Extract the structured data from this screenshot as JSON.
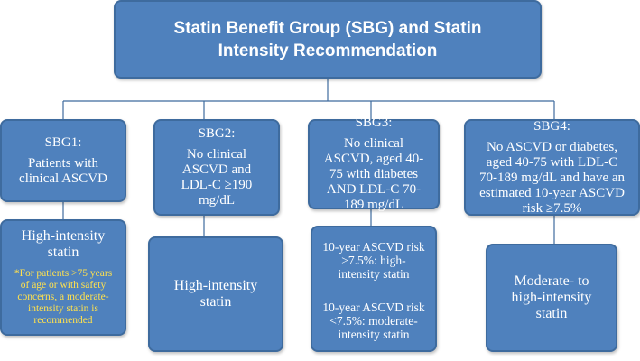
{
  "title": "Statin Benefit Group (SBG) and Statin Intensity Recommendation",
  "groups": [
    {
      "label": "SBG1:",
      "description": "Patients with clinical ASCVD",
      "recommendation": "High-intensity statin",
      "note": "*For patients >75 years of age or with safety concerns, a moderate-intensity statin is recommended"
    },
    {
      "label": "SBG2:",
      "description": "No clinical ASCVD and LDL-C ≥190 mg/dL",
      "recommendation": "High-intensity statin"
    },
    {
      "label": "SBG3:",
      "description": "No clinical ASCVD, aged 40-75 with diabetes AND LDL-C 70-189 mg/dL",
      "recommendation_high": "10-year ASCVD risk ≥7.5%: high-intensity statin",
      "recommendation_moderate": "10-year ASCVD risk <7.5%: moderate-intensity statin"
    },
    {
      "label": "SBG4:",
      "description": "No ASCVD or diabetes, aged 40-75 with LDL-C 70-189 mg/dL and have an estimated 10-year ASCVD risk ≥7.5%",
      "recommendation": "Moderate- to high-intensity statin"
    }
  ],
  "colors": {
    "box_fill": "#4F81BD",
    "box_border": "#3E6B9E",
    "note_text": "#FFE14D"
  }
}
